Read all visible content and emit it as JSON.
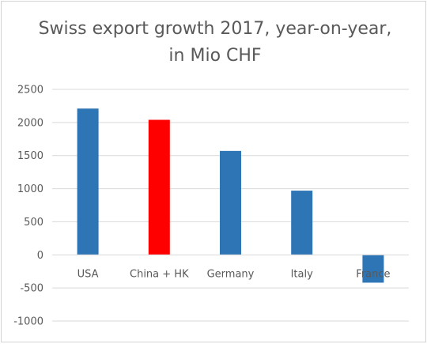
{
  "chart_data": {
    "type": "bar",
    "title": "Swiss export growth 2017, year-on-year, in Mio CHF",
    "categories": [
      "USA",
      "China + HK",
      "Germany",
      "Italy",
      "France"
    ],
    "values": [
      2210,
      2040,
      1570,
      970,
      -420
    ],
    "colors": [
      "#2e75b6",
      "#ff0000",
      "#2e75b6",
      "#2e75b6",
      "#2e75b6"
    ],
    "xlabel": "",
    "ylabel": "",
    "ylim": [
      -1000,
      2500
    ],
    "yticks": [
      2500,
      2000,
      1500,
      1000,
      500,
      0,
      -500,
      -1000
    ],
    "grid": true,
    "legend": "none"
  }
}
